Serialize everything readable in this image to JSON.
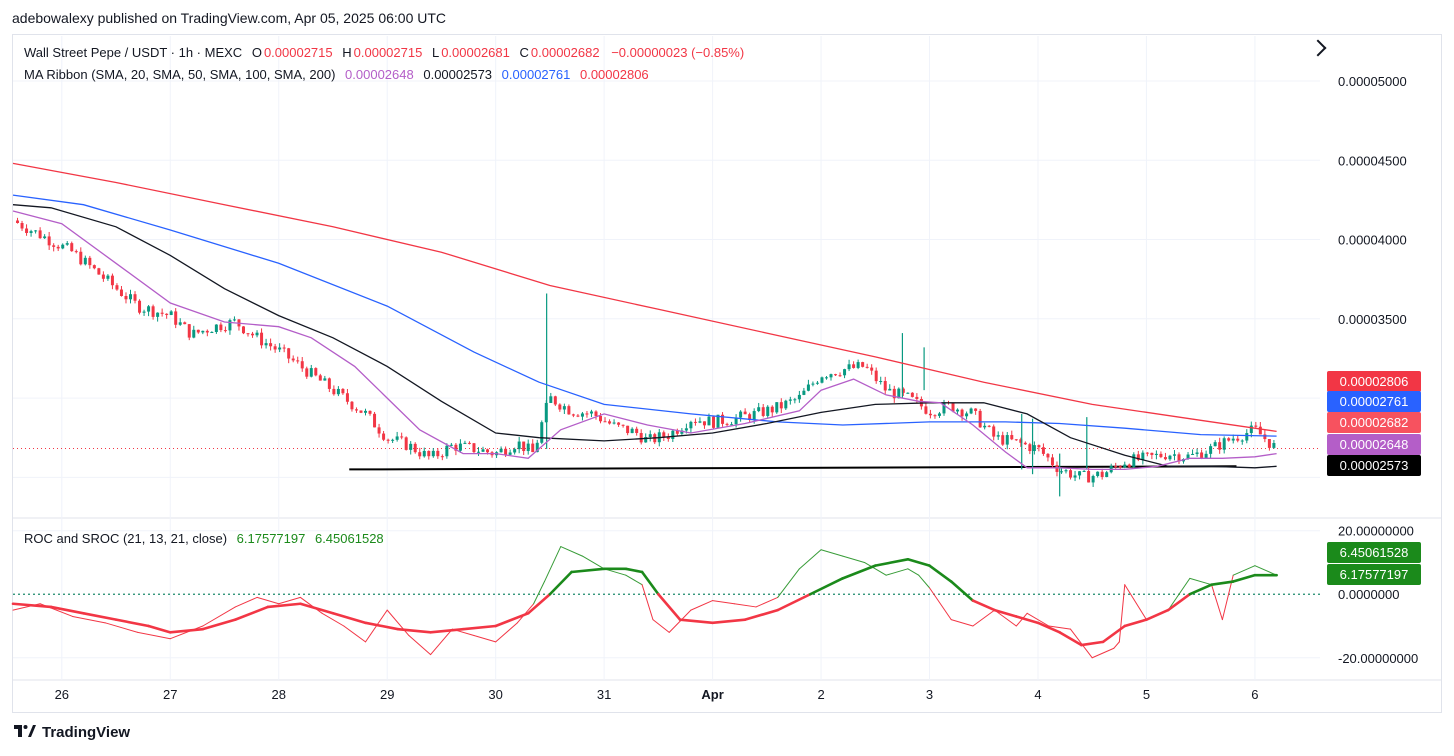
{
  "publisher_line": "adebowalexy published on TradingView.com, Apr 05, 2025 06:00 UTC",
  "legend": {
    "symbol": "Wall Street Pepe / USDT · 1h · MEXC",
    "o_label": "O",
    "o_value": "0.00002715",
    "h_label": "H",
    "h_value": "0.00002715",
    "l_label": "L",
    "l_value": "0.00002681",
    "c_label": "C",
    "c_value": "0.00002682",
    "change": "−0.00000023 (−0.85%)",
    "ma_label": "MA Ribbon (SMA, 20, SMA, 50, SMA, 100, SMA, 200)",
    "ma20_value": "0.00002648",
    "ma50_value": "0.00002573",
    "ma100_value": "0.00002761",
    "ma200_value": "0.00002806",
    "roc_label": "ROC and SROC  (21, 13, 21, close)",
    "roc_value": "6.17577197",
    "sroc_value": "6.45061528"
  },
  "footer": {
    "brand": "TradingView"
  },
  "colors": {
    "up": "#089981",
    "down": "#f23645",
    "ma20": "#b45ec8",
    "ma50": "#131722",
    "ma100": "#2962ff",
    "ma200": "#f23645",
    "roc": "#f23645",
    "sroc_up": "#1b8a1b",
    "roc_up": "#389c38",
    "grid": "#f0f3fa"
  },
  "chart_data": [
    {
      "type": "candlestick",
      "title": "Wall Street Pepe / USDT · 1h · MEXC",
      "x_tick_labels": [
        "26",
        "27",
        "28",
        "29",
        "30",
        "31",
        "Apr",
        "2",
        "3",
        "4",
        "5",
        "6"
      ],
      "y_ticks": [
        3.5e-05,
        4e-05,
        4.5e-05,
        5e-05
      ],
      "y_tick_labels": [
        "0.00003500",
        "0.00004000",
        "0.00004500",
        "0.00005000"
      ],
      "ylim": [
        2.25e-05,
        5.29e-05
      ],
      "xlim": [
        25.55,
        37.6
      ],
      "last_close": 2.682e-05,
      "price_tags": [
        {
          "label": "0.00002806",
          "value": 2.806e-05,
          "color": "#f23645"
        },
        {
          "label": "0.00002761",
          "value": 2.761e-05,
          "color": "#2962ff"
        },
        {
          "label": "0.00002682",
          "value": 2.682e-05,
          "color": "#f7525f"
        },
        {
          "label": "0.00002648",
          "value": 2.648e-05,
          "color": "#b45ec8"
        },
        {
          "label": "0.00002573",
          "value": 2.573e-05,
          "color": "#000000"
        }
      ],
      "ma_series": [
        {
          "name": "SMA 200",
          "color": "#f23645",
          "x": [
            25.55,
            26.5,
            27.5,
            28.5,
            29.5,
            30.5,
            31.5,
            32.5,
            33.5,
            34.5,
            35.5,
            36.5,
            37.2
          ],
          "y": [
            4.48e-05,
            4.36e-05,
            4.22e-05,
            4.08e-05,
            3.92e-05,
            3.71e-05,
            3.56e-05,
            3.41e-05,
            3.26e-05,
            3.1e-05,
            2.96e-05,
            2.86e-05,
            2.79e-05
          ]
        },
        {
          "name": "SMA 100",
          "color": "#2962ff",
          "x": [
            25.55,
            26.2,
            27.0,
            28.0,
            29.0,
            29.8,
            30.4,
            31.0,
            31.8,
            32.6,
            33.2,
            34.0,
            34.7,
            35.2,
            35.8,
            36.5,
            37.2
          ],
          "y": [
            4.28e-05,
            4.22e-05,
            4.06e-05,
            3.85e-05,
            3.58e-05,
            3.29e-05,
            3.1e-05,
            2.96e-05,
            2.9e-05,
            2.85e-05,
            2.83e-05,
            2.85e-05,
            2.85e-05,
            2.84e-05,
            2.81e-05,
            2.77e-05,
            2.76e-05
          ]
        },
        {
          "name": "SMA 50",
          "color": "#131722",
          "x": [
            25.55,
            25.9,
            26.5,
            27.0,
            27.5,
            28.0,
            28.5,
            29.0,
            29.5,
            30.0,
            30.4,
            31.0,
            31.5,
            32.0,
            32.5,
            33.0,
            33.5,
            34.0,
            34.5,
            34.9,
            35.3,
            35.8,
            36.2,
            36.6,
            37.0,
            37.2
          ],
          "y": [
            4.22e-05,
            4.2e-05,
            4.08e-05,
            3.9e-05,
            3.69e-05,
            3.52e-05,
            3.38e-05,
            3.2e-05,
            2.98e-05,
            2.78e-05,
            2.75e-05,
            2.73e-05,
            2.75e-05,
            2.78e-05,
            2.84e-05,
            2.91e-05,
            2.96e-05,
            2.97e-05,
            2.97e-05,
            2.9e-05,
            2.75e-05,
            2.64e-05,
            2.57e-05,
            2.57e-05,
            2.56e-05,
            2.57e-05
          ]
        },
        {
          "name": "SMA 20",
          "color": "#b45ec8",
          "x": [
            25.55,
            26.0,
            26.5,
            27.0,
            27.5,
            28.0,
            28.3,
            28.7,
            29.0,
            29.3,
            29.7,
            30.0,
            30.3,
            30.6,
            31.0,
            31.4,
            31.8,
            32.3,
            32.8,
            33.0,
            33.3,
            33.6,
            33.9,
            34.1,
            34.4,
            34.7,
            34.9,
            35.2,
            35.5,
            35.8,
            36.1,
            36.4,
            36.7,
            37.0,
            37.2
          ],
          "y": [
            4.18e-05,
            4.1e-05,
            3.85e-05,
            3.6e-05,
            3.48e-05,
            3.45e-05,
            3.38e-05,
            3.2e-05,
            3e-05,
            2.8e-05,
            2.65e-05,
            2.65e-05,
            2.62e-05,
            2.8e-05,
            2.9e-05,
            2.83e-05,
            2.78e-05,
            2.84e-05,
            2.92e-05,
            3.05e-05,
            3.12e-05,
            3.02e-05,
            2.98e-05,
            2.97e-05,
            2.83e-05,
            2.66e-05,
            2.56e-05,
            2.56e-05,
            2.55e-05,
            2.55e-05,
            2.57e-05,
            2.62e-05,
            2.62e-05,
            2.63e-05,
            2.65e-05
          ]
        }
      ],
      "support_line": {
        "x": [
          28.65,
          36.83
        ],
        "y": [
          2.55e-05,
          2.57e-05
        ]
      },
      "price_path": {
        "x": [
          25.55,
          25.8,
          26.1,
          26.4,
          26.7,
          27.0,
          27.2,
          27.4,
          27.6,
          27.8,
          28.0,
          28.2,
          28.4,
          28.6,
          28.8,
          29.0,
          29.2,
          29.4,
          29.6,
          29.8,
          30.0,
          30.2,
          30.35,
          30.45,
          30.5,
          30.7,
          30.9,
          31.1,
          31.3,
          31.4,
          31.6,
          31.8,
          32.0,
          32.2,
          32.4,
          32.6,
          32.8,
          33.0,
          33.2,
          33.4,
          33.6,
          33.8,
          34.0,
          34.2,
          34.4,
          34.6,
          34.8,
          35.0,
          35.2,
          35.4,
          35.6,
          35.8,
          36.0,
          36.2,
          36.4,
          36.6,
          36.8,
          37.0,
          37.2
        ],
        "y": [
          4.12e-05,
          4.03e-05,
          3.92e-05,
          3.75e-05,
          3.58e-05,
          3.52e-05,
          3.4e-05,
          3.45e-05,
          3.48e-05,
          3.38e-05,
          3.3e-05,
          3.2e-05,
          3.1e-05,
          3e-05,
          2.9e-05,
          2.75e-05,
          2.7e-05,
          2.62e-05,
          2.7e-05,
          2.68e-05,
          2.65e-05,
          2.72e-05,
          2.65e-05,
          2.9e-05,
          3e-05,
          2.92e-05,
          2.9e-05,
          2.82e-05,
          2.78e-05,
          2.73e-05,
          2.77e-05,
          2.87e-05,
          2.85e-05,
          2.87e-05,
          2.9e-05,
          2.94e-05,
          3e-05,
          3.15e-05,
          3.18e-05,
          3.2e-05,
          3.05e-05,
          3e-05,
          2.92e-05,
          2.95e-05,
          2.9e-05,
          2.75e-05,
          2.72e-05,
          2.68e-05,
          2.55e-05,
          2.5e-05,
          2.52e-05,
          2.6e-05,
          2.62e-05,
          2.65e-05,
          2.63e-05,
          2.68e-05,
          2.75e-05,
          2.8e-05,
          2.68e-05
        ]
      },
      "wick_spikes": [
        {
          "x": 30.47,
          "high": 3.66e-05,
          "low": 2.68e-05
        },
        {
          "x": 33.75,
          "high": 3.41e-05,
          "low": 3e-05
        },
        {
          "x": 33.95,
          "high": 3.32e-05,
          "low": 3.05e-05
        },
        {
          "x": 34.85,
          "high": 2.9e-05,
          "low": 2.55e-05
        },
        {
          "x": 34.95,
          "high": 2.87e-05,
          "low": 2.52e-05
        },
        {
          "x": 35.45,
          "high": 2.88e-05,
          "low": 2.55e-05
        },
        {
          "x": 35.2,
          "high": 2.65e-05,
          "low": 2.38e-05
        }
      ]
    },
    {
      "type": "line",
      "title": "ROC and SROC  (21, 13, 21, close)",
      "y_ticks": [
        -20,
        0,
        20
      ],
      "y_tick_labels": [
        "-20.00000000",
        "0.0000000",
        "20.00000000"
      ],
      "ylim": [
        -27,
        24
      ],
      "xlim": [
        25.55,
        37.6
      ],
      "zero_line": 0,
      "price_tags": [
        {
          "label": "6.45061528",
          "value": 6.45061528,
          "color": "#1b8a1b"
        },
        {
          "label": "6.17577197",
          "value": 6.17577197,
          "color": "#1b8a1b"
        }
      ],
      "series": [
        {
          "name": "ROC",
          "x": [
            25.55,
            25.8,
            26.1,
            26.4,
            26.7,
            27.0,
            27.3,
            27.6,
            27.8,
            28.0,
            28.2,
            28.4,
            28.6,
            28.8,
            29.0,
            29.2,
            29.4,
            29.6,
            29.8,
            30.0,
            30.2,
            30.35,
            30.45,
            30.6,
            30.8,
            31.0,
            31.2,
            31.35,
            31.45,
            31.6,
            31.8,
            32.0,
            32.2,
            32.4,
            32.6,
            32.8,
            33.0,
            33.2,
            33.4,
            33.6,
            33.8,
            33.9,
            34.0,
            34.2,
            34.4,
            34.6,
            34.8,
            34.9,
            35.1,
            35.3,
            35.5,
            35.7,
            35.75,
            35.8,
            36.0,
            36.2,
            36.4,
            36.6,
            36.7,
            36.8,
            37.0,
            37.2
          ],
          "y": [
            -5,
            -3,
            -7,
            -9,
            -12,
            -14,
            -10,
            -4,
            -1,
            -3,
            -1,
            -6,
            -10,
            -15,
            -5,
            -13,
            -19,
            -11,
            -13,
            -15,
            -9,
            -3,
            4,
            15,
            12,
            8,
            6,
            3,
            -8,
            -12,
            -5,
            -2,
            -3,
            -4,
            -1,
            8,
            14,
            12,
            10,
            6,
            8,
            6,
            2,
            -8,
            -10,
            -5,
            -10,
            -6,
            -10,
            -11,
            -20,
            -17,
            -15,
            3,
            -8,
            -5,
            5,
            3,
            -8,
            6,
            9,
            6
          ],
          "color": "#f23645",
          "color_above_zero": "#389c38"
        },
        {
          "name": "SROC",
          "x": [
            25.55,
            25.9,
            26.2,
            26.5,
            26.8,
            27.0,
            27.3,
            27.6,
            27.9,
            28.2,
            28.5,
            28.8,
            29.1,
            29.4,
            29.7,
            30.0,
            30.3,
            30.5,
            30.7,
            31.0,
            31.2,
            31.35,
            31.5,
            31.7,
            32.0,
            32.3,
            32.6,
            32.9,
            33.2,
            33.5,
            33.8,
            34.0,
            34.2,
            34.4,
            34.6,
            34.8,
            35.0,
            35.2,
            35.4,
            35.6,
            35.8,
            36.0,
            36.2,
            36.4,
            36.6,
            36.8,
            37.0,
            37.2
          ],
          "y": [
            -3,
            -4,
            -6,
            -8,
            -10,
            -12,
            -11,
            -8,
            -4,
            -3,
            -6,
            -9,
            -11,
            -12,
            -11,
            -10,
            -6,
            0,
            7,
            8,
            8,
            7,
            0,
            -8,
            -9,
            -8,
            -5,
            0,
            5,
            9,
            11,
            9,
            4,
            -2,
            -5,
            -7,
            -9,
            -12,
            -16,
            -15,
            -10,
            -8,
            -5,
            0,
            3,
            4,
            6,
            6
          ],
          "color": "#f23645",
          "color_above_zero": "#1b8a1b"
        }
      ]
    }
  ]
}
